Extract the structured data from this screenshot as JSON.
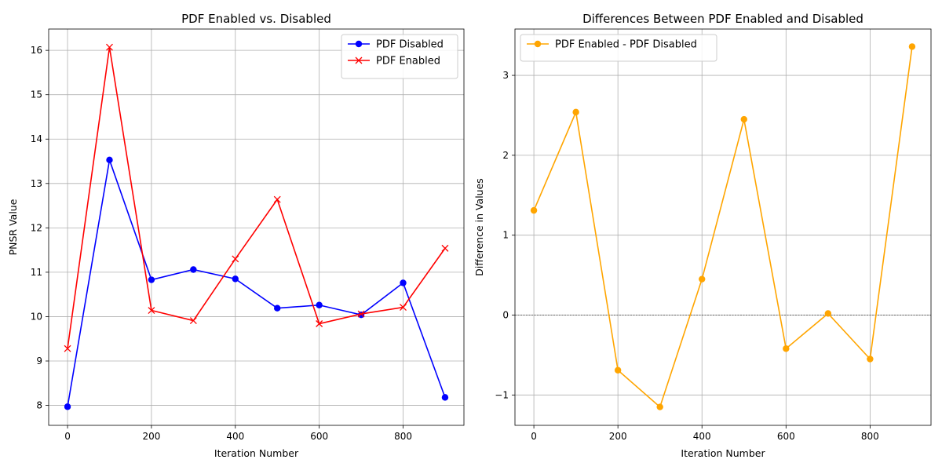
{
  "chart_data": [
    {
      "type": "line",
      "title": "PDF Enabled vs. Disabled",
      "xlabel": "Iteration Number",
      "ylabel": "PNSR Value",
      "x": [
        0,
        100,
        200,
        300,
        400,
        500,
        600,
        700,
        800,
        900
      ],
      "xticks": [
        0,
        200,
        400,
        600,
        800
      ],
      "xlim": [
        -45,
        945
      ],
      "yticks": [
        8,
        9,
        10,
        11,
        12,
        13,
        14,
        15,
        16
      ],
      "ylim": [
        7.55,
        16.48
      ],
      "grid": true,
      "legend_position": "upper-right",
      "series": [
        {
          "name": "PDF Disabled",
          "color": "#0000ff",
          "marker": "circle",
          "values": [
            7.97,
            13.53,
            10.83,
            11.06,
            10.85,
            10.19,
            10.26,
            10.04,
            10.76,
            8.18
          ]
        },
        {
          "name": "PDF Enabled",
          "color": "#ff0000",
          "marker": "x",
          "values": [
            9.28,
            16.07,
            10.14,
            9.91,
            11.3,
            12.64,
            9.84,
            10.06,
            10.21,
            11.54
          ]
        }
      ]
    },
    {
      "type": "line",
      "title": "Differences Between PDF Enabled and Disabled",
      "xlabel": "Iteration Number",
      "ylabel": "Difference in Values",
      "x": [
        0,
        100,
        200,
        300,
        400,
        500,
        600,
        700,
        800,
        900
      ],
      "xticks": [
        0,
        200,
        400,
        600,
        800
      ],
      "xlim": [
        -45,
        945
      ],
      "yticks": [
        -1,
        0,
        1,
        2,
        3
      ],
      "ytick_labels": [
        "−1",
        "0",
        "1",
        "2",
        "3"
      ],
      "ylim": [
        -1.38,
        3.58
      ],
      "grid": true,
      "zero_line": true,
      "legend_position": "upper-left",
      "series": [
        {
          "name": "PDF Enabled - PDF Disabled",
          "color": "#ffa500",
          "marker": "circle",
          "values": [
            1.31,
            2.54,
            -0.69,
            -1.15,
            0.45,
            2.45,
            -0.42,
            0.02,
            -0.55,
            3.36
          ]
        }
      ]
    }
  ]
}
